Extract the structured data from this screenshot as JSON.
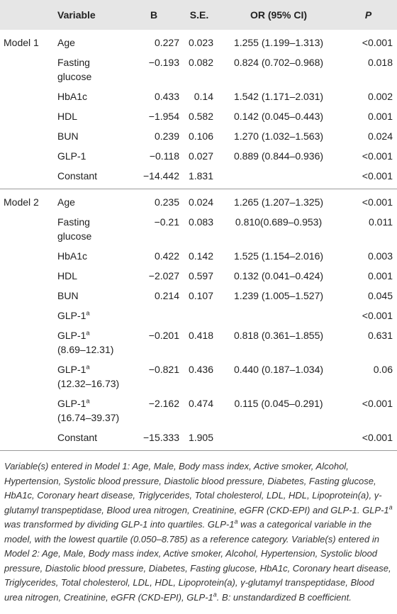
{
  "header": {
    "variable": "Variable",
    "B": "B",
    "SE": "S.E.",
    "OR": "OR (95% CI)",
    "P": "P"
  },
  "models": [
    {
      "name": "Model 1",
      "rows": [
        {
          "variable": {
            "text": "Age"
          },
          "B": "0.227",
          "SE": "0.023",
          "OR": "1.255 (1.199–1.313)",
          "P": "<0.001"
        },
        {
          "variable": {
            "text": "Fasting glucose"
          },
          "B": "−0.193",
          "SE": "0.082",
          "OR": "0.824 (0.702–0.968)",
          "P": "0.018"
        },
        {
          "variable": {
            "text": "HbA1c"
          },
          "B": "0.433",
          "SE": "0.14",
          "OR": "1.542 (1.171–2.031)",
          "P": "0.002"
        },
        {
          "variable": {
            "text": "HDL"
          },
          "B": "−1.954",
          "SE": "0.582",
          "OR": "0.142 (0.045–0.443)",
          "P": "0.001"
        },
        {
          "variable": {
            "text": "BUN"
          },
          "B": "0.239",
          "SE": "0.106",
          "OR": "1.270 (1.032–1.563)",
          "P": "0.024"
        },
        {
          "variable": {
            "text": "GLP-1"
          },
          "B": "−0.118",
          "SE": "0.027",
          "OR": "0.889 (0.844–0.936)",
          "P": "<0.001"
        },
        {
          "variable": {
            "text": "Constant"
          },
          "B": "−14.442",
          "SE": "1.831",
          "P": "<0.001"
        }
      ]
    },
    {
      "name": "Model 2",
      "rows": [
        {
          "variable": {
            "text": "Age"
          },
          "B": "0.235",
          "SE": "0.024",
          "OR": "1.265 (1.207–1.325)",
          "P": "<0.001"
        },
        {
          "variable": {
            "text": "Fasting glucose"
          },
          "B": "−0.21",
          "SE": "0.083",
          "OR": "0.810(0.689–0.953)",
          "P": "0.011"
        },
        {
          "variable": {
            "text": "HbA1c"
          },
          "B": "0.422",
          "SE": "0.142",
          "OR": "1.525 (1.154–2.016)",
          "P": "0.003"
        },
        {
          "variable": {
            "text": "HDL"
          },
          "B": "−2.027",
          "SE": "0.597",
          "OR": "0.132 (0.041–0.424)",
          "P": "0.001"
        },
        {
          "variable": {
            "text": "BUN"
          },
          "B": "0.214",
          "SE": "0.107",
          "OR": "1.239 (1.005–1.527)",
          "P": "0.045"
        },
        {
          "variable": {
            "text": "GLP-1",
            "sup": "a"
          },
          "P": "<0.001"
        },
        {
          "variable": {
            "text": "GLP-1",
            "sup": "a",
            "range": "(8.69–12.31)"
          },
          "B": "−0.201",
          "SE": "0.418",
          "OR": "0.818 (0.361–1.855)",
          "P": "0.631"
        },
        {
          "variable": {
            "text": "GLP-1",
            "sup": "a",
            "range": "(12.32–16.73)"
          },
          "B": "−0.821",
          "SE": "0.436",
          "OR": "0.440 (0.187–1.034)",
          "P": "0.06"
        },
        {
          "variable": {
            "text": "GLP-1",
            "sup": "a",
            "range": "(16.74–39.37)"
          },
          "B": "−2.162",
          "SE": "0.474",
          "OR": "0.115 (0.045–0.291)",
          "P": "<0.001"
        },
        {
          "variable": {
            "text": "Constant"
          },
          "B": "−15.333",
          "SE": "1.905",
          "P": "<0.001"
        }
      ]
    }
  ],
  "footnote": [
    {
      "text": "Variable(s) entered in Model 1: Age, Male, Body mass index, Active smoker, Alcohol, Hypertension, Systolic blood pressure, Diastolic blood pressure, Diabetes, Fasting glucose, HbA1c, Coronary heart disease, Triglycerides, Total cholesterol, LDL, HDL, Lipoprotein(a), γ-glutamyl transpeptidase, Blood urea nitrogen, Creatinine, eGFR (CKD-EPI) and GLP-1. GLP-1"
    },
    {
      "sup": "a"
    },
    {
      "text": " was transformed by dividing GLP-1 into quartiles. GLP-1"
    },
    {
      "sup": "a"
    },
    {
      "text": " was a categorical variable in the model, with the lowest quartile (0.050–8.785) as a reference category. Variable(s) entered in Model 2: Age, Male, Body mass index, Active smoker, Alcohol, Hypertension, Systolic blood pressure, Diastolic blood pressure, Diabetes, Fasting glucose, HbA1c, Coronary heart disease, Triglycerides, Total cholesterol, LDL, HDL, Lipoprotein(a), γ-glutamyl transpeptidase, Blood urea nitrogen, Creatinine, eGFR (CKD-EPI), GLP-1"
    },
    {
      "sup": "a"
    },
    {
      "text": ". B: unstandardized B coefficient."
    }
  ]
}
